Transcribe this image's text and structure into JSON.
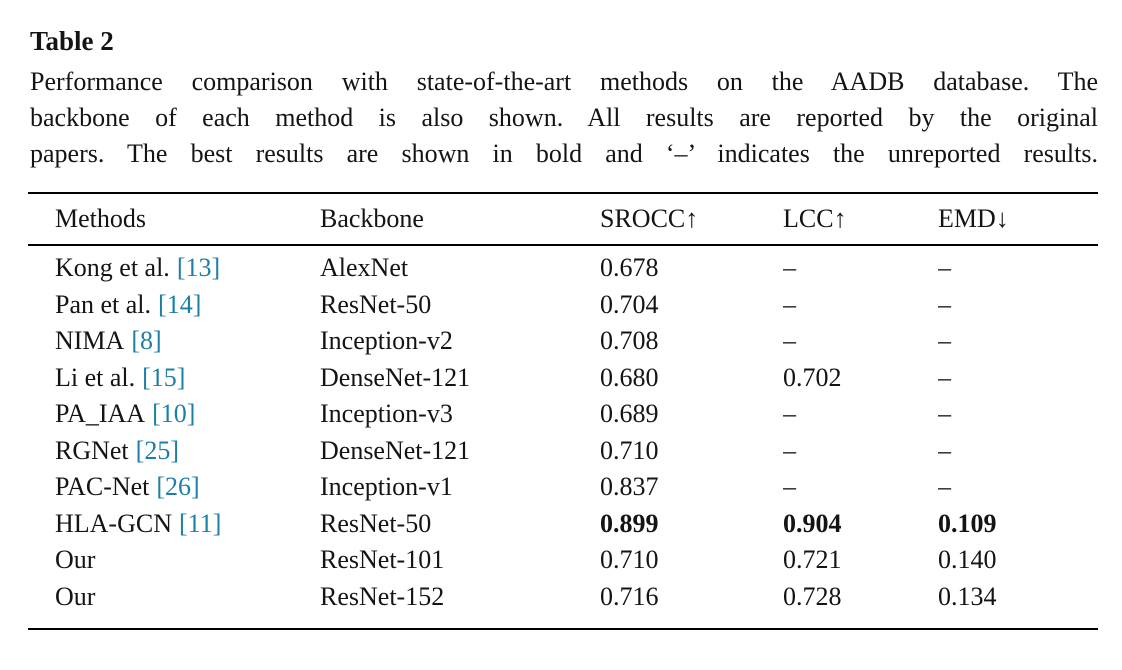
{
  "colors": {
    "citation": "#1d7fa8",
    "text": "#141414",
    "background": "#ffffff"
  },
  "table": {
    "label": "Table 2",
    "caption_lines": {
      "line1": "Performance comparison with state-of-the-art methods on the AADB database. The",
      "line2": "backbone of each method is also shown. All results are reported by the original",
      "line3": "papers. The best results are shown in bold and ‘–’ indicates the unreported results."
    },
    "columns": {
      "methods": "Methods",
      "backbone": "Backbone",
      "srocc": "SROCC↑",
      "lcc": "LCC↑",
      "emd": "EMD↓"
    },
    "rows": [
      {
        "method": "Kong et al.",
        "citation": "[13]",
        "backbone": "AlexNet",
        "srocc": "0.678",
        "lcc": "–",
        "emd": "–"
      },
      {
        "method": "Pan et al.",
        "citation": "[14]",
        "backbone": "ResNet-50",
        "srocc": "0.704",
        "lcc": "–",
        "emd": "–"
      },
      {
        "method": "NIMA",
        "citation": "[8]",
        "backbone": "Inception-v2",
        "srocc": "0.708",
        "lcc": "–",
        "emd": "–"
      },
      {
        "method": "Li et al.",
        "citation": "[15]",
        "backbone": "DenseNet-121",
        "srocc": "0.680",
        "lcc": "0.702",
        "emd": "–"
      },
      {
        "method": "PA_IAA",
        "citation": "[10]",
        "backbone": "Inception-v3",
        "srocc": "0.689",
        "lcc": "–",
        "emd": "–"
      },
      {
        "method": "RGNet",
        "citation": "[25]",
        "backbone": "DenseNet-121",
        "srocc": "0.710",
        "lcc": "–",
        "emd": "–"
      },
      {
        "method": "PAC-Net",
        "citation": "[26]",
        "backbone": "Inception-v1",
        "srocc": "0.837",
        "lcc": "–",
        "emd": "–"
      },
      {
        "method": "HLA-GCN",
        "citation": "[11]",
        "backbone": "ResNet-50",
        "srocc": "0.899",
        "lcc": "0.904",
        "emd": "0.109",
        "best": true
      },
      {
        "method": "Our",
        "citation": "",
        "backbone": "ResNet-101",
        "srocc": "0.710",
        "lcc": "0.721",
        "emd": "0.140"
      },
      {
        "method": "Our",
        "citation": "",
        "backbone": "ResNet-152",
        "srocc": "0.716",
        "lcc": "0.728",
        "emd": "0.134"
      }
    ]
  }
}
